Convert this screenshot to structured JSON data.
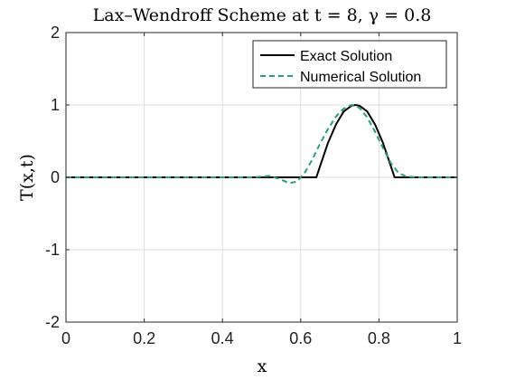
{
  "chart_data": {
    "type": "line",
    "title": "Lax–Wendroff Scheme at t = 8,  γ = 0.8",
    "xlabel": "x",
    "ylabel": "T(x,t)",
    "xlim": [
      0,
      1
    ],
    "ylim": [
      -2,
      2
    ],
    "xticks": [
      0,
      0.2,
      0.4,
      0.6,
      0.8,
      1
    ],
    "yticks": [
      -2,
      -1,
      0,
      1,
      2
    ],
    "grid": true,
    "legend_position": "top-right",
    "series": [
      {
        "name": "Exact Solution",
        "color": "#000000",
        "style": "solid",
        "x": [
          0,
          0.64,
          0.65,
          0.67,
          0.69,
          0.71,
          0.73,
          0.74,
          0.75,
          0.77,
          0.79,
          0.81,
          0.83,
          0.84,
          1
        ],
        "y": [
          0,
          0,
          0.16,
          0.48,
          0.73,
          0.91,
          0.99,
          1.0,
          0.99,
          0.91,
          0.73,
          0.48,
          0.16,
          0,
          0
        ]
      },
      {
        "name": "Numerical Solution",
        "color": "#2a9d80",
        "style": "dashed",
        "x": [
          0,
          0.48,
          0.52,
          0.55,
          0.57,
          0.59,
          0.61,
          0.63,
          0.65,
          0.67,
          0.69,
          0.71,
          0.73,
          0.74,
          0.75,
          0.77,
          0.79,
          0.81,
          0.83,
          0.85,
          0.87,
          0.9,
          1
        ],
        "y": [
          0,
          0,
          0.02,
          -0.03,
          -0.08,
          -0.06,
          0.06,
          0.25,
          0.47,
          0.67,
          0.84,
          0.95,
          1.0,
          0.99,
          0.96,
          0.83,
          0.63,
          0.41,
          0.2,
          0.06,
          0.01,
          0,
          0
        ]
      }
    ]
  }
}
